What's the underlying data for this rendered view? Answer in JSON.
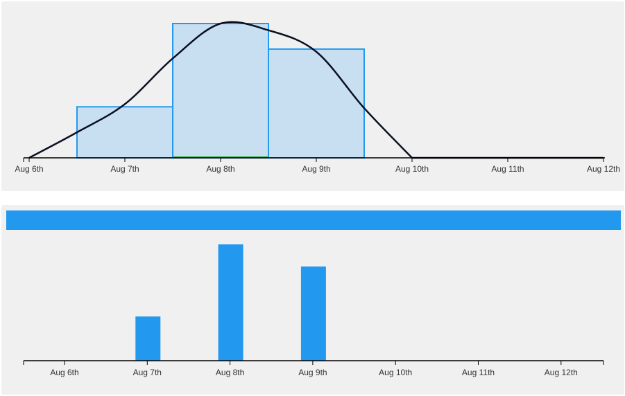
{
  "colors": {
    "accent": "#2299ee",
    "hist_fill": "#c8dff2",
    "density_line": "#0a1020",
    "axis": "#000000",
    "marker": "#22aa22"
  },
  "chart_data": [
    {
      "type": "area",
      "x_ticks": [
        "Aug 6th",
        "Aug 7th",
        "Aug 8th",
        "Aug 9th",
        "Aug 10th",
        "Aug 11th",
        "Aug 12th"
      ],
      "histogram": [
        {
          "from": "Aug 6th 12:00",
          "to": "Aug 7th 12:00",
          "value": 0.38
        },
        {
          "from": "Aug 7th 12:00",
          "to": "Aug 8th 12:00",
          "value": 1.0
        },
        {
          "from": "Aug 8th 12:00",
          "to": "Aug 9th 12:00",
          "value": 0.81
        }
      ],
      "density": {
        "x": [
          0,
          0.5,
          1.0,
          1.5,
          2.0,
          2.5,
          3.0,
          3.5,
          4.0
        ],
        "y": [
          0.0,
          0.19,
          0.4,
          0.74,
          1.0,
          0.95,
          0.79,
          0.37,
          0.0
        ]
      },
      "marker_range": [
        "Aug 7th 12:00",
        "Aug 8th 12:00"
      ],
      "ylim": [
        0,
        1
      ],
      "grid": false
    },
    {
      "type": "bar",
      "categories": [
        "Aug 6th",
        "Aug 7th",
        "Aug 8th",
        "Aug 9th",
        "Aug 10th",
        "Aug 11th",
        "Aug 12th"
      ],
      "values": [
        0,
        0.38,
        1.0,
        0.81,
        0,
        0,
        0
      ],
      "ylim": [
        0,
        1
      ],
      "grid": false
    }
  ]
}
